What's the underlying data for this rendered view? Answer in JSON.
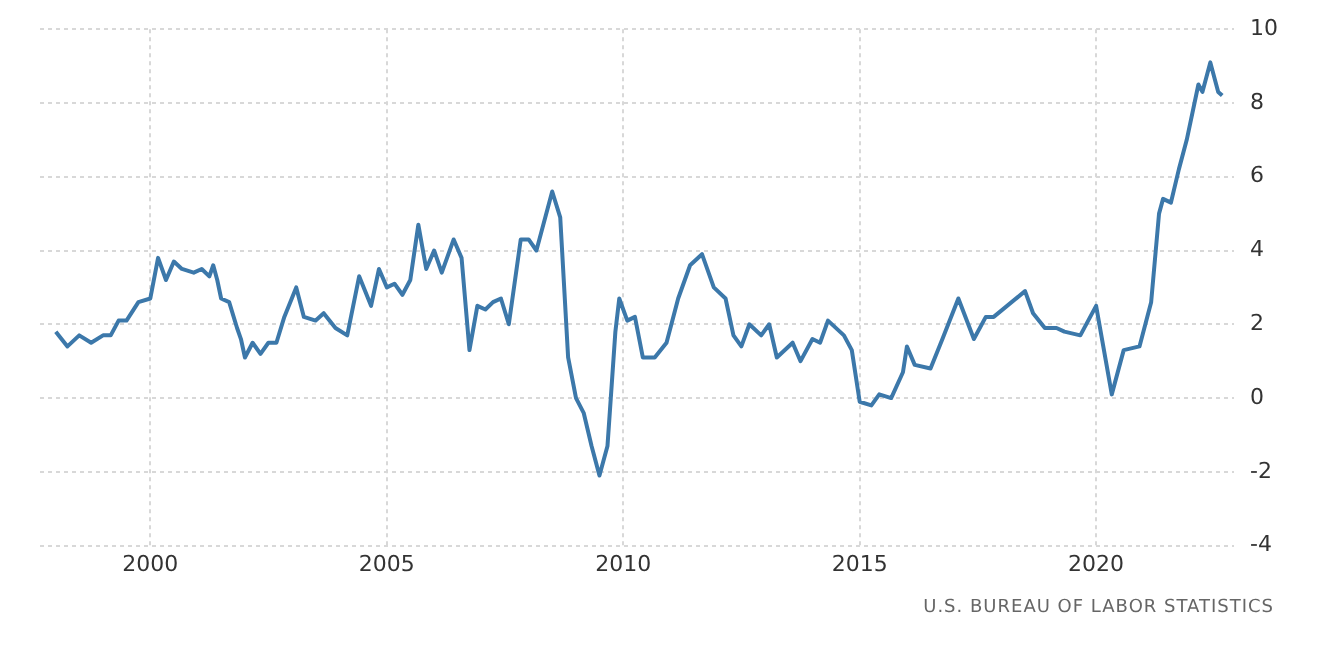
{
  "chart_data": {
    "type": "line",
    "x": [
      "1998-01",
      "1998-04",
      "1998-07",
      "1998-10",
      "1999-01",
      "1999-03",
      "1999-05",
      "1999-07",
      "1999-10",
      "2000-01",
      "2000-03",
      "2000-05",
      "2000-07",
      "2000-09",
      "2000-12",
      "2001-02",
      "2001-04",
      "2001-05",
      "2001-06",
      "2001-07",
      "2001-09",
      "2001-11",
      "2001-12",
      "2002-01",
      "2002-03",
      "2002-05",
      "2002-07",
      "2002-09",
      "2002-11",
      "2003-02",
      "2003-04",
      "2003-07",
      "2003-09",
      "2003-12",
      "2004-03",
      "2004-06",
      "2004-09",
      "2004-11",
      "2005-01",
      "2005-03",
      "2005-05",
      "2005-07",
      "2005-09",
      "2005-11",
      "2006-01",
      "2006-03",
      "2006-06",
      "2006-08",
      "2006-10",
      "2006-12",
      "2007-02",
      "2007-04",
      "2007-06",
      "2007-08",
      "2007-11",
      "2008-01",
      "2008-03",
      "2008-07",
      "2008-09",
      "2008-11",
      "2009-01",
      "2009-03",
      "2009-05",
      "2009-07",
      "2009-09",
      "2009-11",
      "2009-12",
      "2010-02",
      "2010-04",
      "2010-06",
      "2010-09",
      "2010-12",
      "2011-03",
      "2011-06",
      "2011-09",
      "2011-12",
      "2012-03",
      "2012-05",
      "2012-07",
      "2012-09",
      "2012-12",
      "2013-02",
      "2013-04",
      "2013-08",
      "2013-10",
      "2014-01",
      "2014-03",
      "2014-05",
      "2014-09",
      "2014-11",
      "2015-01",
      "2015-04",
      "2015-06",
      "2015-09",
      "2015-12",
      "2016-01",
      "2016-03",
      "2016-07",
      "2016-10",
      "2017-02",
      "2017-06",
      "2017-09",
      "2017-11",
      "2018-07",
      "2018-09",
      "2018-12",
      "2019-03",
      "2019-05",
      "2019-09",
      "2020-01",
      "2020-05",
      "2020-08",
      "2020-12",
      "2021-03",
      "2021-05",
      "2021-06",
      "2021-08",
      "2021-10",
      "2021-12",
      "2022-03",
      "2022-04",
      "2022-06",
      "2022-08",
      "2022-09"
    ],
    "series": [
      {
        "color": "#3c78aa",
        "values": [
          1.8,
          1.4,
          1.7,
          1.5,
          1.7,
          1.7,
          2.1,
          2.1,
          2.6,
          2.7,
          3.8,
          3.2,
          3.7,
          3.5,
          3.4,
          3.5,
          3.3,
          3.6,
          3.2,
          2.7,
          2.6,
          1.9,
          1.6,
          1.1,
          1.5,
          1.2,
          1.5,
          1.5,
          2.2,
          3.0,
          2.2,
          2.1,
          2.3,
          1.9,
          1.7,
          3.3,
          2.5,
          3.5,
          3.0,
          3.1,
          2.8,
          3.2,
          4.7,
          3.5,
          4.0,
          3.4,
          4.3,
          3.8,
          1.3,
          2.5,
          2.4,
          2.6,
          2.7,
          2.0,
          4.3,
          4.3,
          4.0,
          5.6,
          4.9,
          1.1,
          0.0,
          -0.4,
          -1.3,
          -2.1,
          -1.3,
          1.8,
          2.7,
          2.1,
          2.2,
          1.1,
          1.1,
          1.5,
          2.7,
          3.6,
          3.9,
          3.0,
          2.7,
          1.7,
          1.4,
          2.0,
          1.7,
          2.0,
          1.1,
          1.5,
          1.0,
          1.6,
          1.5,
          2.1,
          1.7,
          1.3,
          -0.1,
          -0.2,
          0.1,
          0.0,
          0.7,
          1.4,
          0.9,
          0.8,
          1.6,
          2.7,
          1.6,
          2.2,
          2.2,
          2.9,
          2.3,
          1.9,
          1.9,
          1.8,
          1.7,
          2.5,
          0.1,
          1.3,
          1.4,
          2.6,
          5.0,
          5.4,
          5.3,
          6.2,
          7.0,
          8.5,
          8.3,
          9.1,
          8.3,
          8.2
        ]
      }
    ],
    "xlim": [
      "1997-09",
      "2022-12"
    ],
    "xticks": [
      "2000",
      "2005",
      "2010",
      "2015",
      "2020"
    ],
    "ylim": [
      -4,
      10
    ],
    "yticks": [
      -4,
      -2,
      0,
      2,
      4,
      6,
      8,
      10
    ],
    "grid": true,
    "legend": false,
    "marker": "none",
    "line_style": "solid",
    "annotations": [
      "U.S. BUREAU OF LABOR STATISTICS"
    ]
  }
}
